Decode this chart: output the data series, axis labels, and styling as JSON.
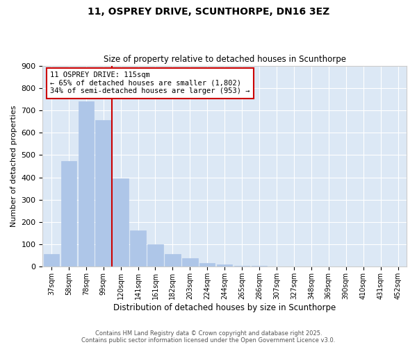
{
  "title": "11, OSPREY DRIVE, SCUNTHORPE, DN16 3EZ",
  "subtitle": "Size of property relative to detached houses in Scunthorpe",
  "xlabel": "Distribution of detached houses by size in Scunthorpe",
  "ylabel": "Number of detached properties",
  "categories": [
    "37sqm",
    "58sqm",
    "78sqm",
    "99sqm",
    "120sqm",
    "141sqm",
    "161sqm",
    "182sqm",
    "203sqm",
    "224sqm",
    "244sqm",
    "265sqm",
    "286sqm",
    "307sqm",
    "327sqm",
    "348sqm",
    "369sqm",
    "390sqm",
    "410sqm",
    "431sqm",
    "452sqm"
  ],
  "values": [
    57,
    474,
    741,
    656,
    397,
    164,
    100,
    57,
    38,
    18,
    10,
    5,
    3,
    2,
    1,
    1,
    0,
    0,
    0,
    0,
    0
  ],
  "bar_color": "#aec6e8",
  "bar_edgecolor": "#aec6e8",
  "redline_x": 3.5,
  "annotation_title": "11 OSPREY DRIVE: 115sqm",
  "annotation_line1": "← 65% of detached houses are smaller (1,802)",
  "annotation_line2": "34% of semi-detached houses are larger (953) →",
  "annotation_box_color": "#ffffff",
  "annotation_box_edgecolor": "#cc0000",
  "redline_color": "#cc0000",
  "footer_line1": "Contains HM Land Registry data © Crown copyright and database right 2025.",
  "footer_line2": "Contains public sector information licensed under the Open Government Licence v3.0.",
  "ylim": [
    0,
    900
  ],
  "background_color": "#dce8f5"
}
